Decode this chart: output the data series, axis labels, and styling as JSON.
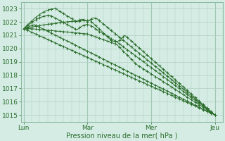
{
  "bg_color": "#d4ece4",
  "grid_color": "#b0cfc0",
  "line_color": "#2d6e2d",
  "marker_color": "#2d6e2d",
  "xlabel": "Pression niveau de la mer( hPa )",
  "xtick_labels": [
    "Lun",
    "Mar",
    "Mer",
    "Jeu"
  ],
  "xtick_positions": [
    0,
    48,
    96,
    144
  ],
  "ylim": [
    1014.5,
    1023.5
  ],
  "yticks": [
    1015,
    1016,
    1017,
    1018,
    1019,
    1020,
    1021,
    1022,
    1023
  ],
  "xlim": [
    -2,
    150
  ],
  "n": 145
}
